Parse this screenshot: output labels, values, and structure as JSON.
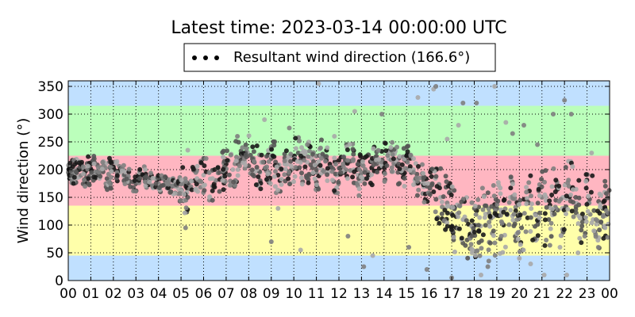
{
  "chart_data": {
    "type": "scatter",
    "title": "Latest time: 2023-03-14 00:00:00 UTC",
    "xlabel": "",
    "ylabel": "Wind direction (°)",
    "legend": {
      "label": "Resultant wind direction (166.6°)",
      "placement": "top-center, above plot"
    },
    "xlim": [
      0,
      24
    ],
    "ylim": [
      0,
      360
    ],
    "x_ticks": [
      "00",
      "01",
      "02",
      "03",
      "04",
      "05",
      "06",
      "07",
      "08",
      "09",
      "10",
      "11",
      "12",
      "13",
      "14",
      "15",
      "16",
      "17",
      "18",
      "19",
      "20",
      "21",
      "22",
      "23",
      "00"
    ],
    "y_ticks": [
      0,
      50,
      100,
      150,
      200,
      250,
      300,
      350
    ],
    "grid": true,
    "bands": [
      {
        "from": 0,
        "to": 45,
        "color": "#c0e0ff"
      },
      {
        "from": 45,
        "to": 135,
        "color": "#ffffaa"
      },
      {
        "from": 135,
        "to": 225,
        "color": "#ffb6c1"
      },
      {
        "from": 225,
        "to": 315,
        "color": "#bbffbb"
      },
      {
        "from": 315,
        "to": 360,
        "color": "#c0e0ff"
      }
    ],
    "series": [
      {
        "name": "Resultant wind direction (166.6°)",
        "marker_colors": [
          "#7f7f7f",
          "#555555",
          "#1a1a1a",
          "#a9a9a9"
        ],
        "x": [
          0.0,
          0.1,
          0.2,
          0.3,
          0.5,
          0.8,
          1.0,
          1.2,
          1.5,
          1.8,
          2.0,
          2.3,
          2.6,
          3.0,
          3.3,
          3.6,
          4.0,
          4.3,
          4.6,
          4.9,
          5.1,
          5.3,
          5.6,
          6.0,
          6.4,
          6.8,
          7.0,
          7.3,
          7.6,
          7.9,
          8.2,
          8.5,
          8.8,
          9.0,
          9.3,
          9.6,
          9.9,
          10.2,
          10.5,
          10.8,
          11.0,
          11.3,
          11.6,
          11.9,
          12.2,
          12.5,
          12.8,
          13.0,
          13.3,
          13.6,
          13.9,
          14.2,
          14.5,
          14.8,
          15.0,
          15.3,
          15.6,
          15.9,
          16.2,
          16.5,
          16.8,
          17.0,
          17.2,
          17.5,
          17.8,
          18.0,
          18.2,
          18.5,
          18.8,
          19.0,
          19.3,
          19.6,
          19.9,
          20.1,
          20.4,
          20.7,
          21.0,
          21.3,
          21.6,
          21.9,
          22.2,
          22.5,
          22.8,
          23.1,
          23.4,
          23.7,
          23.9
        ],
        "y": [
          195,
          200,
          205,
          190,
          200,
          185,
          210,
          195,
          200,
          180,
          205,
          195,
          185,
          175,
          190,
          180,
          175,
          180,
          170,
          165,
          175,
          150,
          180,
          190,
          170,
          185,
          210,
          200,
          220,
          230,
          215,
          195,
          205,
          220,
          190,
          210,
          200,
          230,
          205,
          220,
          195,
          225,
          210,
          190,
          205,
          215,
          200,
          185,
          195,
          215,
          205,
          220,
          210,
          195,
          215,
          200,
          185,
          170,
          160,
          150,
          140,
          120,
          95,
          110,
          80,
          100,
          90,
          120,
          85,
          130,
          100,
          150,
          110,
          95,
          140,
          120,
          150,
          110,
          160,
          130,
          170,
          150,
          120,
          140,
          110,
          130,
          120
        ],
        "extra_points": {
          "x": [
            5.2,
            5.3,
            7.5,
            8.7,
            9.0,
            9.3,
            9.8,
            10.3,
            10.6,
            11.1,
            11.4,
            11.8,
            12.4,
            12.7,
            13.1,
            13.5,
            13.9,
            14.3,
            15.1,
            15.5,
            15.9,
            16.2,
            16.3,
            16.8,
            17.0,
            17.3,
            17.5,
            17.9,
            18.1,
            18.3,
            18.6,
            18.9,
            19.2,
            19.4,
            19.7,
            20.0,
            20.2,
            20.5,
            20.8,
            21.1,
            21.5,
            21.8,
            22.0,
            22.1,
            22.3,
            22.6,
            22.9,
            23.2,
            23.5,
            23.8
          ],
          "y": [
            95,
            235,
            260,
            290,
            70,
            130,
            275,
            55,
            245,
            355,
            215,
            260,
            80,
            305,
            25,
            45,
            300,
            240,
            60,
            330,
            20,
            345,
            350,
            255,
            5,
            280,
            320,
            50,
            320,
            10,
            25,
            350,
            80,
            285,
            265,
            40,
            280,
            30,
            245,
            10,
            300,
            60,
            325,
            10,
            300,
            50,
            80,
            230,
            60,
            95
          ]
        }
      }
    ]
  }
}
